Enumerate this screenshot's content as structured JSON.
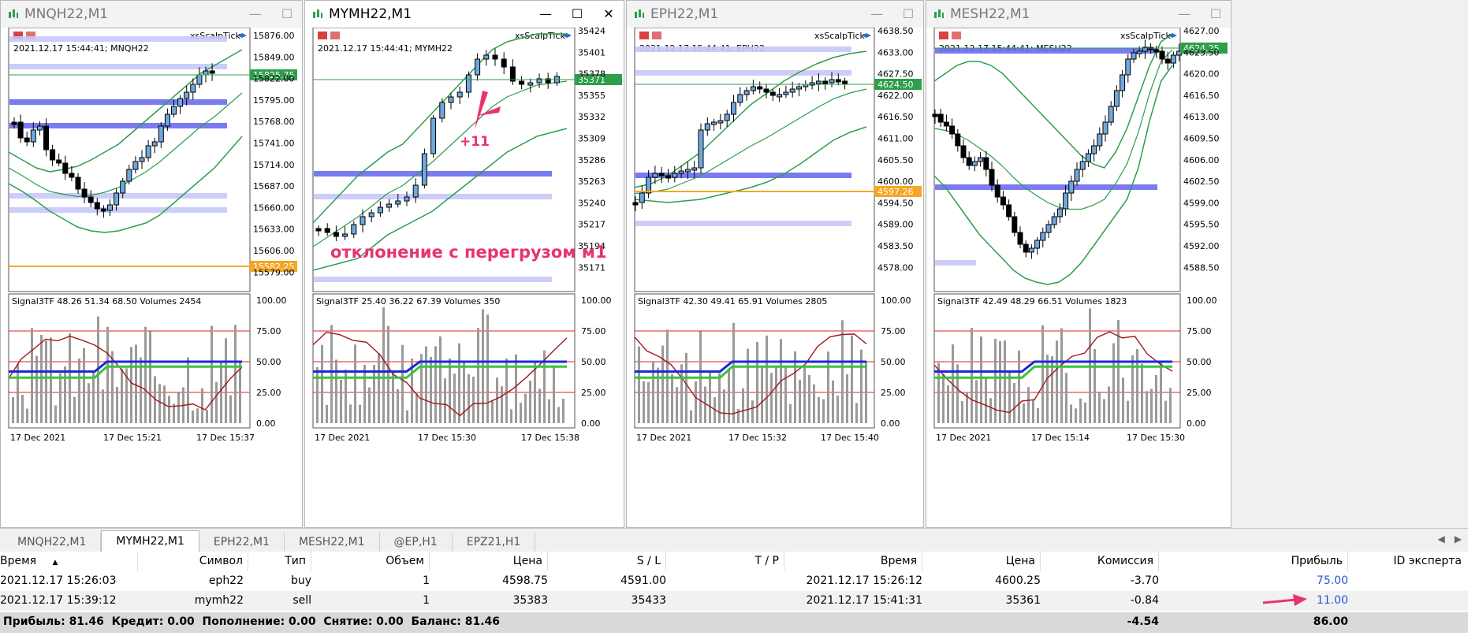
{
  "windows": [
    {
      "title": "MNQH22,M1",
      "active": false,
      "indicator": "xsScalpTick",
      "info": "2021.12.17 15:44:41; MNQH22",
      "price_labels": [
        "15876.00",
        "15849.00",
        "15822.00",
        "15795.00",
        "15768.00",
        "15741.00",
        "15714.00",
        "15687.00",
        "15660.00",
        "15633.00",
        "15606.00",
        "15579.00"
      ],
      "current_price": "15825.75",
      "level_price": "15582.25",
      "signal": "Signal3TF 48.26 51.34 68.50 Volumes 2454",
      "osc_labels": [
        "100.00",
        "75.00",
        "50.00",
        "25.00",
        "0.00"
      ],
      "time_labels": [
        "17 Dec 2021",
        "17 Dec 15:21",
        "17 Dec 15:37"
      ]
    },
    {
      "title": "MYMH22,M1",
      "active": true,
      "indicator": "xsScalpTick",
      "info": "2021.12.17 15:44:41; MYMH22",
      "price_labels": [
        "35424",
        "35401",
        "35378",
        "35355",
        "35332",
        "35309",
        "35286",
        "35263",
        "35240",
        "35217",
        "35194",
        "35171"
      ],
      "current_price": "35371",
      "annotation_plus": "+11",
      "annotation_text": "отклонение с перегрузом м1",
      "signal": "Signal3TF 25.40 36.22 67.39 Volumes 350",
      "osc_labels": [
        "100.00",
        "75.00",
        "50.00",
        "25.00",
        "0.00"
      ],
      "time_labels": [
        "17 Dec 2021",
        "17 Dec 15:30",
        "17 Dec 15:38"
      ]
    },
    {
      "title": "EPH22,M1",
      "active": false,
      "indicator": "xsScalpTick",
      "info": "2021.12.17 15:44:41; EPH22",
      "price_labels": [
        "4638.50",
        "4633.00",
        "4627.50",
        "4622.00",
        "4616.50",
        "4611.00",
        "4605.50",
        "4600.00",
        "4594.50",
        "4589.00",
        "4583.50",
        "4578.00"
      ],
      "current_price": "4624.50",
      "level_price": "4597.26",
      "signal": "Signal3TF 42.30 49.41 65.91 Volumes 2805",
      "osc_labels": [
        "100.00",
        "75.00",
        "50.00",
        "25.00",
        "0.00"
      ],
      "time_labels": [
        "17 Dec 2021",
        "17 Dec 15:32",
        "17 Dec 15:40"
      ]
    },
    {
      "title": "MESH22,M1",
      "active": false,
      "indicator": "xsScalpTick",
      "info": "2021.12.17 15:44:41; MESH22",
      "price_labels": [
        "4627.00",
        "4623.50",
        "4620.00",
        "4616.50",
        "4613.00",
        "4609.50",
        "4606.00",
        "4602.50",
        "4599.00",
        "4595.50",
        "4592.00",
        "4588.50"
      ],
      "current_price": "4624.25",
      "signal": "Signal3TF 42.49 48.29 66.51 Volumes 1823",
      "osc_labels": [
        "100.00",
        "75.00",
        "50.00",
        "25.00",
        "0.00"
      ],
      "time_labels": [
        "17 Dec 2021",
        "17 Dec 15:14",
        "17 Dec 15:30"
      ]
    }
  ],
  "window_buttons": {
    "minimize": "—",
    "maximize": "☐",
    "close": "✕"
  },
  "tabs": [
    "MNQH22,M1",
    "MYMH22,M1",
    "EPH22,M1",
    "MESH22,M1",
    "@EP,H1",
    "EPZ21,H1"
  ],
  "tab_scroll": {
    "left": "◀",
    "right": "▶"
  },
  "trade": {
    "headers": [
      "Время",
      "Символ",
      "Тип",
      "Объем",
      "Цена",
      "S / L",
      "T / P",
      "Время",
      "Цена",
      "Комиссия",
      "Прибыль",
      "ID эксперта"
    ],
    "rows": [
      [
        "2021.12.17 15:26:03",
        "eph22",
        "buy",
        "1",
        "4598.75",
        "4591.00",
        "",
        "2021.12.17 15:26:12",
        "4600.25",
        "-3.70",
        "75.00",
        ""
      ],
      [
        "2021.12.17 15:39:12",
        "mymh22",
        "sell",
        "1",
        "35383",
        "35433",
        "",
        "2021.12.17 15:41:31",
        "35361",
        "-0.84",
        "11.00",
        ""
      ]
    ],
    "summary": "Прибыль: 81.46  Кредит: 0.00  Пополнение: 0.00  Снятие: 0.00  Баланс: 81.46",
    "total_commission": "-4.54",
    "total_profit": "86.00"
  },
  "colors": {
    "band": "#2e9e4b",
    "bull_fill": "#6fa8dc",
    "level_blue": "#6b6bf0",
    "level_light": "#c8c8f8",
    "current": "#2e9e4b",
    "orange": "#f5a623",
    "annotation": "#e8336d"
  }
}
